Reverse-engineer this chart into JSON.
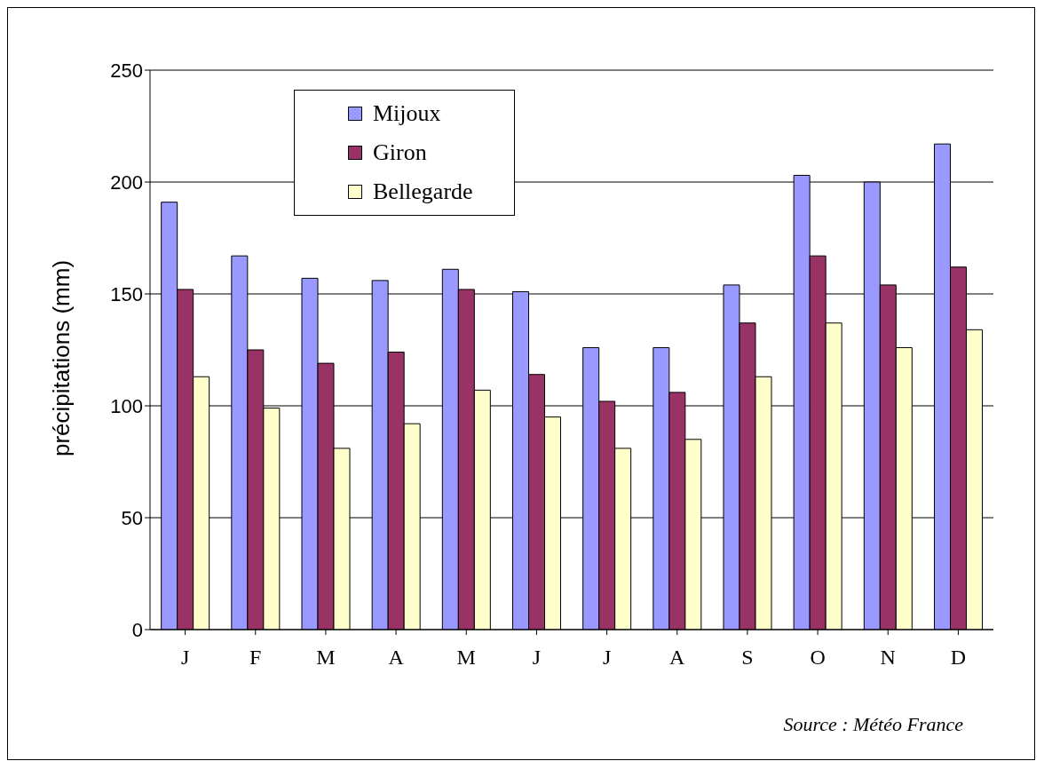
{
  "chart_data": {
    "type": "bar",
    "ylabel": "précipitations (mm)",
    "categories": [
      "J",
      "F",
      "M",
      "A",
      "M",
      "J",
      "J",
      "A",
      "S",
      "O",
      "N",
      "D"
    ],
    "series": [
      {
        "name": "Mijoux",
        "color": "#9999ff",
        "values": [
          191,
          167,
          157,
          156,
          161,
          151,
          126,
          126,
          154,
          203,
          200,
          217
        ]
      },
      {
        "name": "Giron",
        "color": "#993366",
        "values": [
          152,
          125,
          119,
          124,
          152,
          114,
          102,
          106,
          137,
          167,
          154,
          162
        ]
      },
      {
        "name": "Bellegarde",
        "color": "#ffffcc",
        "values": [
          113,
          99,
          81,
          92,
          107,
          95,
          81,
          85,
          113,
          137,
          126,
          134
        ]
      }
    ],
    "ylim": [
      0,
      250
    ],
    "yticks": [
      0,
      50,
      100,
      150,
      200,
      250
    ],
    "grid": "y",
    "legend": "top left",
    "annotations": [
      "Source : Météo France"
    ]
  }
}
